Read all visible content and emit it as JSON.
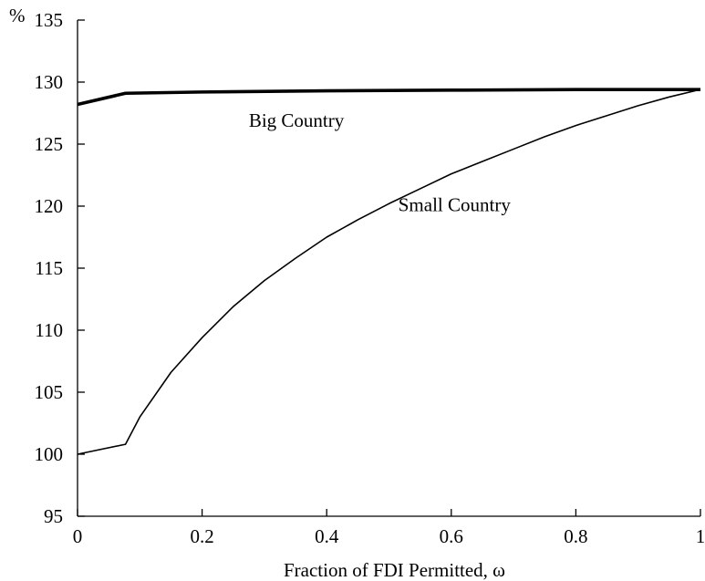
{
  "chart_data": {
    "type": "line",
    "title": "",
    "xlabel": "Fraction of FDI Permitted,  ω",
    "ylabel": "%",
    "xlim": [
      0,
      1
    ],
    "ylim": [
      95,
      135
    ],
    "x_ticks": [
      "0",
      "0.2",
      "0.4",
      "0.6",
      "0.8",
      "1"
    ],
    "y_ticks": [
      "95",
      "100",
      "105",
      "110",
      "115",
      "120",
      "125",
      "130",
      "135"
    ],
    "grid": false,
    "series": [
      {
        "name": "Big Country",
        "color": "#000000",
        "emphasis": "thick",
        "points": [
          [
            0,
            128.2
          ],
          [
            0.077,
            129.1
          ],
          [
            0.2,
            129.2
          ],
          [
            0.4,
            129.3
          ],
          [
            0.6,
            129.35
          ],
          [
            0.8,
            129.4
          ],
          [
            1.0,
            129.4
          ]
        ]
      },
      {
        "name": "Small Country",
        "color": "#000000",
        "emphasis": "thin",
        "points": [
          [
            0,
            100.0
          ],
          [
            0.077,
            100.8
          ],
          [
            0.1,
            103.0
          ],
          [
            0.15,
            106.6
          ],
          [
            0.2,
            109.4
          ],
          [
            0.25,
            111.9
          ],
          [
            0.3,
            114.0
          ],
          [
            0.35,
            115.8
          ],
          [
            0.4,
            117.5
          ],
          [
            0.45,
            118.9
          ],
          [
            0.5,
            120.2
          ],
          [
            0.55,
            121.4
          ],
          [
            0.6,
            122.6
          ],
          [
            0.65,
            123.6
          ],
          [
            0.7,
            124.6
          ],
          [
            0.75,
            125.6
          ],
          [
            0.8,
            126.5
          ],
          [
            0.85,
            127.3
          ],
          [
            0.9,
            128.1
          ],
          [
            0.95,
            128.8
          ],
          [
            1.0,
            129.4
          ]
        ]
      }
    ]
  }
}
